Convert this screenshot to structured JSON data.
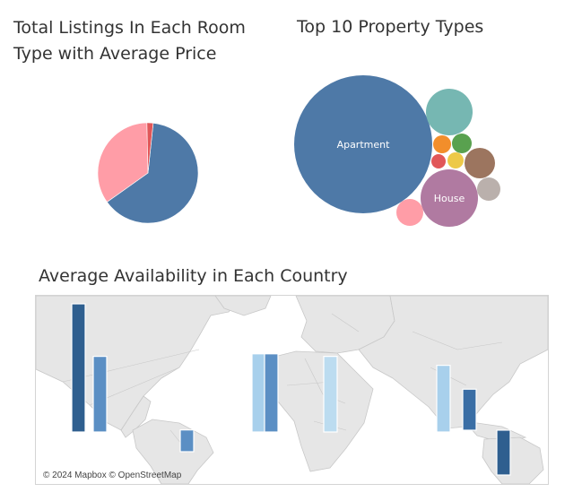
{
  "pie_title": "Total Listings In Each Room Type with Average Price",
  "bubble_title": "Top 10 Property Types",
  "map_title": "Average Availability in Each Country",
  "map_attribution": "© 2024 Mapbox © OpenStreetMap",
  "chart_data": [
    {
      "type": "pie",
      "title": "Total Listings In Each Room Type with Average Price",
      "slices": [
        {
          "value": 63.5,
          "color": "#4e79a7"
        },
        {
          "value": 34.5,
          "color": "#ff9da7"
        },
        {
          "value": 2.0,
          "color": "#e15759"
        }
      ]
    },
    {
      "type": "bubble",
      "title": "Top 10 Property Types",
      "bubbles": [
        {
          "label": "Apartment",
          "color": "#4e79a7"
        },
        {
          "label": "House",
          "color": "#b07aa1"
        },
        {
          "label": "",
          "color": "#76b7b2"
        },
        {
          "label": "",
          "color": "#f28e2b"
        },
        {
          "label": "",
          "color": "#59a14f"
        },
        {
          "label": "",
          "color": "#e15759"
        },
        {
          "label": "",
          "color": "#edc948"
        },
        {
          "label": "",
          "color": "#9c755f"
        },
        {
          "label": "",
          "color": "#bab0ac"
        },
        {
          "label": "",
          "color": "#ff9da7"
        }
      ]
    },
    {
      "type": "bar-on-map",
      "title": "Average Availability in Each Country",
      "bars": [
        {
          "value": 100,
          "color": "#2f5f8f"
        },
        {
          "value": 59,
          "color": "#5b8fc4"
        },
        {
          "value": 17,
          "color": "#5b8fc4"
        },
        {
          "value": 61,
          "color": "#a8d0ec"
        },
        {
          "value": 61,
          "color": "#5b8fc4"
        },
        {
          "value": 59,
          "color": "#bcdcf0"
        },
        {
          "value": 52,
          "color": "#a8d0ec"
        },
        {
          "value": 32,
          "color": "#3a6ea5"
        },
        {
          "value": 35,
          "color": "#2f5f8f"
        }
      ]
    }
  ]
}
